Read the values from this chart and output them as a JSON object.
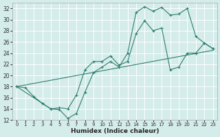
{
  "xlabel": "Humidex (Indice chaleur)",
  "bg_color": "#d4ecea",
  "grid_color": "#b8d8d4",
  "line_color": "#2e7d6e",
  "xlim": [
    -0.5,
    23.5
  ],
  "ylim": [
    12,
    33
  ],
  "xticks": [
    0,
    1,
    2,
    3,
    4,
    5,
    6,
    7,
    8,
    9,
    10,
    11,
    12,
    13,
    14,
    15,
    16,
    17,
    18,
    19,
    20,
    21,
    22,
    23
  ],
  "yticks": [
    12,
    14,
    16,
    18,
    20,
    22,
    24,
    26,
    28,
    30,
    32
  ],
  "curve1_x": [
    0,
    1,
    2,
    3,
    4,
    5,
    6,
    7,
    8,
    9,
    10,
    11,
    12,
    13,
    14,
    15,
    16,
    17,
    18,
    19,
    20,
    21,
    22,
    23
  ],
  "curve1_y": [
    18.0,
    17.8,
    16.2,
    15.0,
    14.0,
    13.9,
    12.3,
    13.2,
    17.0,
    20.5,
    21.5,
    22.5,
    21.5,
    24.0,
    31.3,
    32.3,
    31.5,
    32.2,
    30.8,
    31.0,
    32.0,
    27.0,
    25.8,
    24.8
  ],
  "curve2_x": [
    0,
    3,
    4,
    5,
    6,
    7,
    8,
    9,
    10,
    11,
    12,
    13,
    14,
    15,
    16,
    17,
    18,
    19,
    20,
    21,
    22,
    23
  ],
  "curve2_y": [
    18.0,
    15.0,
    14.0,
    14.2,
    14.0,
    16.5,
    21.0,
    22.5,
    22.5,
    23.5,
    21.8,
    22.5,
    27.5,
    29.8,
    28.0,
    28.5,
    21.0,
    21.5,
    24.0,
    24.0,
    25.8,
    24.8
  ],
  "trend_x": [
    0,
    23
  ],
  "trend_y": [
    18.0,
    24.5
  ]
}
